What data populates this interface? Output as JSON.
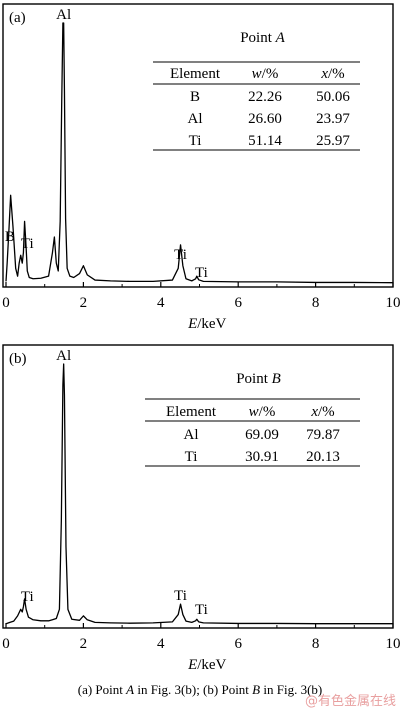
{
  "chart_data": [
    {
      "type": "line",
      "panel_label": "(a)",
      "xlabel_var": "E",
      "xlabel_unit": "/keV",
      "xlim": [
        0,
        10
      ],
      "xticks": [
        0,
        2,
        4,
        6,
        8,
        10
      ],
      "y_axis_labels": "none",
      "peak_labels": [
        {
          "text": "Al",
          "x": 1.49
        },
        {
          "text": "B",
          "x": 0.18
        },
        {
          "text": "Ti",
          "x": 0.45
        },
        {
          "text": "Ti",
          "x": 4.51
        },
        {
          "text": "Ti",
          "x": 4.93
        }
      ],
      "series": [
        {
          "x": [
            0.0,
            0.03,
            0.08,
            0.12,
            0.18,
            0.25,
            0.3,
            0.34,
            0.38,
            0.42,
            0.45,
            0.48,
            0.52,
            0.55,
            0.6,
            0.7,
            0.9,
            1.1,
            1.2,
            1.25,
            1.3,
            1.35,
            1.4,
            1.44,
            1.47,
            1.49,
            1.51,
            1.54,
            1.58,
            1.65,
            1.75,
            1.9,
            2.0,
            2.1,
            2.3,
            2.7,
            3.2,
            3.8,
            4.3,
            4.45,
            4.51,
            4.57,
            4.65,
            4.8,
            4.9,
            4.93,
            4.98,
            5.1,
            6.0,
            7.0,
            8.0,
            9.0,
            10.0
          ],
          "y": [
            1.0,
            8.0,
            22.0,
            34.0,
            22.0,
            6.0,
            3.0,
            8.0,
            11.0,
            8.0,
            12.0,
            24.0,
            14.0,
            5.0,
            2.5,
            2.0,
            2.2,
            3.0,
            12.0,
            18.0,
            8.0,
            5.0,
            24.0,
            70.0,
            100.0,
            100.0,
            74.0,
            25.0,
            6.0,
            3.0,
            2.5,
            4.0,
            7.0,
            3.5,
            1.5,
            1.2,
            1.0,
            1.0,
            1.5,
            6.0,
            15.0,
            7.0,
            2.0,
            1.2,
            2.0,
            3.0,
            1.6,
            1.0,
            0.8,
            0.8,
            0.6,
            0.6,
            0.5
          ]
        }
      ],
      "table": {
        "title_prefix": "Point ",
        "title_var": "A",
        "headers": [
          {
            "var": "",
            "rest": "Element"
          },
          {
            "var": "w",
            "rest": "/%"
          },
          {
            "var": "x",
            "rest": "/%"
          }
        ],
        "rows": [
          [
            "B",
            "22.26",
            "50.06"
          ],
          [
            "Al",
            "26.60",
            "23.97"
          ],
          [
            "Ti",
            "51.14",
            "25.97"
          ]
        ]
      }
    },
    {
      "type": "line",
      "panel_label": "(b)",
      "xlabel_var": "E",
      "xlabel_unit": "/keV",
      "xlim": [
        0,
        10
      ],
      "xticks": [
        0,
        2,
        4,
        6,
        8,
        10
      ],
      "y_axis_labels": "none",
      "peak_labels": [
        {
          "text": "Al",
          "x": 1.49
        },
        {
          "text": "Ti",
          "x": 0.45
        },
        {
          "text": "Ti",
          "x": 4.51
        },
        {
          "text": "Ti",
          "x": 4.93
        }
      ],
      "series": [
        {
          "x": [
            0.0,
            0.1,
            0.2,
            0.3,
            0.38,
            0.42,
            0.45,
            0.48,
            0.52,
            0.58,
            0.7,
            0.9,
            1.1,
            1.2,
            1.3,
            1.38,
            1.43,
            1.47,
            1.49,
            1.51,
            1.55,
            1.6,
            1.7,
            1.9,
            2.0,
            2.1,
            2.3,
            2.7,
            3.2,
            3.8,
            4.3,
            4.45,
            4.51,
            4.57,
            4.65,
            4.8,
            4.9,
            4.93,
            4.98,
            5.1,
            6.0,
            7.0,
            8.0,
            9.0,
            10.0
          ],
          "y": [
            0.5,
            1.0,
            1.5,
            3.5,
            6.0,
            5.0,
            7.0,
            10.0,
            6.0,
            3.0,
            2.0,
            1.6,
            1.6,
            2.0,
            2.5,
            6.0,
            40.0,
            92.0,
            100.0,
            88.0,
            30.0,
            6.0,
            2.2,
            1.8,
            3.5,
            2.0,
            1.0,
            0.8,
            0.7,
            0.8,
            1.2,
            4.0,
            8.0,
            4.0,
            1.5,
            1.0,
            1.6,
            2.2,
            1.2,
            0.8,
            0.6,
            0.6,
            0.5,
            0.5,
            0.5
          ]
        }
      ],
      "table": {
        "title_prefix": "Point ",
        "title_var": "B",
        "headers": [
          {
            "var": "",
            "rest": "Element"
          },
          {
            "var": "w",
            "rest": "/%"
          },
          {
            "var": "x",
            "rest": "/%"
          }
        ],
        "rows": [
          [
            "Al",
            "69.09",
            "79.87"
          ],
          [
            "Ti",
            "30.91",
            "20.13"
          ]
        ]
      }
    }
  ],
  "caption": {
    "part1": "(a) Point ",
    "var1": "A",
    "part2": " in Fig. 3(b); (b) Point ",
    "var2": "B",
    "part3": " in Fig. 3(b)"
  },
  "watermark": "@有色金属在线"
}
